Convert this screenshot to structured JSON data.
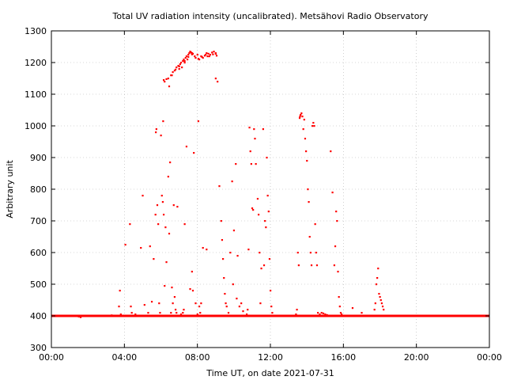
{
  "chart_data": {
    "type": "scatter",
    "title": "Total UV radiation intensity (uncalibrated). Metsähovi Radio Observatory",
    "xlabel": "Time UT, on date 2021-07-31",
    "ylabel": "Arbitrary unit",
    "xlim": [
      0,
      24
    ],
    "ylim": [
      300,
      1300
    ],
    "grid": true,
    "marker_color": "#ff0000",
    "x_ticks": [
      {
        "value": 0,
        "label": "00:00"
      },
      {
        "value": 4,
        "label": "04:00"
      },
      {
        "value": 8,
        "label": "08:00"
      },
      {
        "value": 12,
        "label": "12:00"
      },
      {
        "value": 16,
        "label": "16:00"
      },
      {
        "value": 20,
        "label": "20:00"
      },
      {
        "value": 24,
        "label": "00:00"
      }
    ],
    "y_ticks": [
      300,
      400,
      500,
      600,
      700,
      800,
      900,
      1000,
      1100,
      1200,
      1300
    ],
    "baseline": {
      "value": 400,
      "x_ranges": [
        [
          0,
          24
        ]
      ]
    },
    "series": [
      {
        "points": [
          [
            1.5,
            398
          ],
          [
            1.6,
            396
          ],
          [
            3.3,
            402
          ],
          [
            3.7,
            430
          ],
          [
            3.75,
            480
          ],
          [
            3.8,
            405
          ],
          [
            4.05,
            625
          ],
          [
            4.3,
            690
          ],
          [
            4.35,
            430
          ],
          [
            4.4,
            410
          ],
          [
            4.6,
            405
          ],
          [
            4.9,
            615
          ],
          [
            5.0,
            780
          ],
          [
            5.1,
            435
          ],
          [
            5.3,
            410
          ],
          [
            5.4,
            620
          ],
          [
            5.5,
            445
          ],
          [
            5.6,
            580
          ],
          [
            5.7,
            720
          ],
          [
            5.72,
            980
          ],
          [
            5.75,
            990
          ],
          [
            5.8,
            750
          ],
          [
            5.85,
            690
          ],
          [
            5.9,
            440
          ],
          [
            5.95,
            410
          ],
          [
            6.0,
            970
          ],
          [
            6.05,
            780
          ],
          [
            6.1,
            760
          ],
          [
            6.12,
            1015
          ],
          [
            6.15,
            720
          ],
          [
            6.2,
            495
          ],
          [
            6.25,
            680
          ],
          [
            6.3,
            570
          ],
          [
            6.35,
            400
          ],
          [
            6.4,
            840
          ],
          [
            6.45,
            660
          ],
          [
            6.5,
            885
          ],
          [
            6.55,
            410
          ],
          [
            6.6,
            490
          ],
          [
            6.65,
            440
          ],
          [
            6.7,
            750
          ],
          [
            6.75,
            460
          ],
          [
            6.8,
            420
          ],
          [
            6.85,
            410
          ],
          [
            6.9,
            745
          ],
          [
            7.1,
            405
          ],
          [
            7.2,
            410
          ],
          [
            7.25,
            420
          ],
          [
            7.3,
            690
          ],
          [
            7.4,
            935
          ],
          [
            7.6,
            485
          ],
          [
            7.7,
            540
          ],
          [
            7.75,
            480
          ],
          [
            7.8,
            915
          ],
          [
            7.9,
            440
          ],
          [
            8.0,
            405
          ],
          [
            8.05,
            1015
          ],
          [
            8.1,
            430
          ],
          [
            8.15,
            410
          ],
          [
            8.2,
            440
          ],
          [
            8.3,
            615
          ],
          [
            8.5,
            610
          ],
          [
            9.0,
            1150
          ],
          [
            9.1,
            1140
          ],
          [
            9.2,
            810
          ],
          [
            9.3,
            700
          ],
          [
            9.35,
            640
          ],
          [
            9.4,
            580
          ],
          [
            9.45,
            520
          ],
          [
            9.5,
            470
          ],
          [
            9.55,
            440
          ],
          [
            9.6,
            430
          ],
          [
            9.7,
            410
          ],
          [
            9.8,
            600
          ],
          [
            9.9,
            825
          ],
          [
            9.95,
            500
          ],
          [
            10.0,
            670
          ],
          [
            10.1,
            880
          ],
          [
            10.15,
            455
          ],
          [
            10.2,
            590
          ],
          [
            10.3,
            430
          ],
          [
            10.4,
            440
          ],
          [
            10.5,
            415
          ],
          [
            10.6,
            400
          ],
          [
            10.7,
            405
          ],
          [
            10.75,
            420
          ],
          [
            10.8,
            610
          ],
          [
            10.85,
            995
          ],
          [
            10.9,
            920
          ],
          [
            10.95,
            880
          ],
          [
            11.0,
            740
          ],
          [
            11.05,
            735
          ],
          [
            11.1,
            990
          ],
          [
            11.15,
            960
          ],
          [
            11.2,
            880
          ],
          [
            11.3,
            770
          ],
          [
            11.35,
            720
          ],
          [
            11.4,
            600
          ],
          [
            11.45,
            440
          ],
          [
            11.5,
            550
          ],
          [
            11.6,
            990
          ],
          [
            11.65,
            560
          ],
          [
            11.7,
            700
          ],
          [
            11.75,
            680
          ],
          [
            11.8,
            900
          ],
          [
            11.85,
            780
          ],
          [
            11.9,
            730
          ],
          [
            11.95,
            580
          ],
          [
            12.0,
            480
          ],
          [
            12.05,
            430
          ],
          [
            12.1,
            410
          ],
          [
            12.2,
            400
          ],
          [
            13.3,
            400
          ],
          [
            13.4,
            405
          ],
          [
            13.45,
            420
          ],
          [
            13.5,
            600
          ],
          [
            13.55,
            560
          ],
          [
            13.6,
            1025
          ],
          [
            13.62,
            1030
          ],
          [
            13.65,
            1035
          ],
          [
            13.7,
            1040
          ],
          [
            13.75,
            1030
          ],
          [
            13.8,
            990
          ],
          [
            13.85,
            1020
          ],
          [
            13.9,
            960
          ],
          [
            13.95,
            920
          ],
          [
            14.0,
            890
          ],
          [
            14.05,
            800
          ],
          [
            14.1,
            760
          ],
          [
            14.15,
            650
          ],
          [
            14.2,
            600
          ],
          [
            14.25,
            560
          ],
          [
            14.3,
            1000
          ],
          [
            14.35,
            1010
          ],
          [
            14.4,
            1000
          ],
          [
            14.45,
            690
          ],
          [
            14.5,
            600
          ],
          [
            14.55,
            560
          ],
          [
            14.6,
            410
          ],
          [
            14.7,
            405
          ],
          [
            14.8,
            410
          ],
          [
            14.9,
            408
          ],
          [
            15.0,
            405
          ],
          [
            15.1,
            403
          ],
          [
            15.2,
            400
          ],
          [
            15.3,
            920
          ],
          [
            15.4,
            790
          ],
          [
            15.5,
            560
          ],
          [
            15.55,
            620
          ],
          [
            15.6,
            730
          ],
          [
            15.65,
            700
          ],
          [
            15.7,
            540
          ],
          [
            15.75,
            460
          ],
          [
            15.8,
            430
          ],
          [
            15.85,
            410
          ],
          [
            15.9,
            405
          ],
          [
            16.0,
            400
          ],
          [
            16.4,
            400
          ],
          [
            16.5,
            425
          ],
          [
            16.8,
            400
          ],
          [
            17.0,
            410
          ],
          [
            17.5,
            400
          ],
          [
            17.7,
            420
          ],
          [
            17.75,
            440
          ],
          [
            17.8,
            500
          ],
          [
            17.85,
            520
          ],
          [
            17.9,
            550
          ],
          [
            17.95,
            470
          ],
          [
            18.0,
            460
          ],
          [
            18.05,
            450
          ],
          [
            18.1,
            440
          ],
          [
            18.15,
            430
          ],
          [
            18.2,
            420
          ],
          [
            6.15,
            1145
          ],
          [
            6.2,
            1140
          ],
          [
            6.3,
            1148
          ],
          [
            6.45,
            1125
          ],
          [
            6.55,
            1160
          ],
          [
            6.65,
            1170
          ],
          [
            6.75,
            1175
          ],
          [
            6.85,
            1185
          ],
          [
            6.95,
            1190
          ],
          [
            7.0,
            1180
          ],
          [
            7.05,
            1195
          ],
          [
            7.1,
            1200
          ],
          [
            7.15,
            1185
          ],
          [
            7.2,
            1205
          ],
          [
            7.25,
            1210
          ],
          [
            7.3,
            1200
          ],
          [
            7.35,
            1215
          ],
          [
            7.4,
            1220
          ],
          [
            7.45,
            1210
          ],
          [
            7.5,
            1225
          ],
          [
            7.55,
            1230
          ],
          [
            7.6,
            1235
          ],
          [
            7.65,
            1232
          ],
          [
            7.7,
            1230
          ],
          [
            7.75,
            1228
          ],
          [
            7.85,
            1220
          ],
          [
            7.9,
            1215
          ],
          [
            8.0,
            1225
          ],
          [
            8.1,
            1210
          ],
          [
            8.2,
            1220
          ],
          [
            8.3,
            1215
          ],
          [
            8.4,
            1222
          ],
          [
            8.45,
            1225
          ],
          [
            8.5,
            1230
          ],
          [
            8.55,
            1220
          ],
          [
            8.6,
            1228
          ],
          [
            8.7,
            1225
          ],
          [
            8.8,
            1232
          ],
          [
            8.9,
            1235
          ],
          [
            9.0,
            1228
          ],
          [
            9.05,
            1222
          ],
          [
            6.4,
            1150
          ],
          [
            6.6,
            1160
          ],
          [
            6.8,
            1178
          ],
          [
            7.0,
            1188
          ],
          [
            7.3,
            1205
          ],
          [
            7.5,
            1218
          ],
          [
            7.7,
            1226
          ],
          [
            8.05,
            1212
          ],
          [
            8.25,
            1218
          ],
          [
            8.65,
            1220
          ],
          [
            8.85,
            1226
          ],
          [
            9.0,
            1230
          ]
        ]
      }
    ]
  }
}
